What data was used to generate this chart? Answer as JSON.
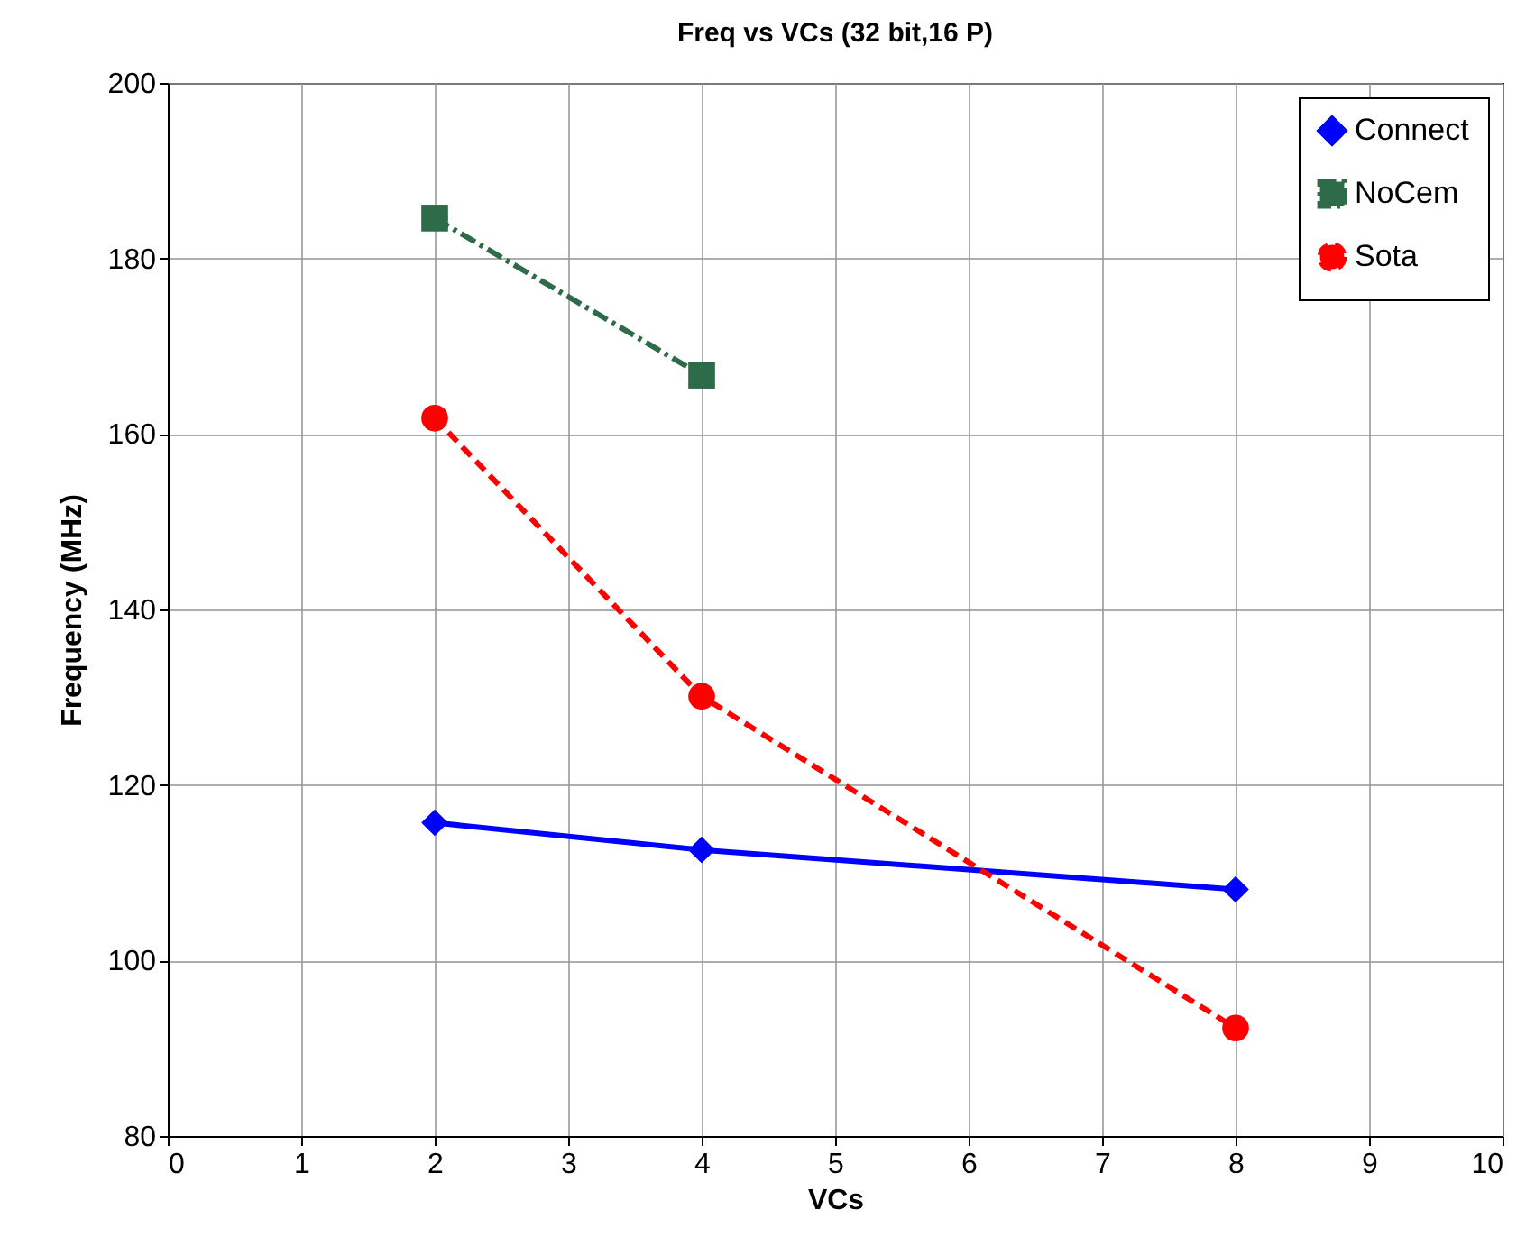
{
  "chart_data": {
    "type": "line",
    "title": "Freq vs VCs (32 bit,16 P)",
    "xlabel": "VCs",
    "ylabel": "Frequency (MHz)",
    "xlim": [
      0,
      10
    ],
    "xticks": [
      0,
      1,
      2,
      3,
      4,
      5,
      6,
      7,
      8,
      9,
      10
    ],
    "ylim": [
      80,
      200
    ],
    "yticks": [
      80,
      100,
      120,
      140,
      160,
      180,
      200
    ],
    "grid": true,
    "legend": "top right",
    "series": [
      {
        "name": "Connect",
        "color": "#0000ff",
        "x": [
          2,
          4,
          8
        ],
        "values": [
          115.7,
          112.6,
          108.1
        ],
        "marker": "diamond",
        "line_style": "solid"
      },
      {
        "name": "NoCem",
        "color": "#2e6b48",
        "x": [
          2,
          4
        ],
        "values": [
          184.6,
          166.7
        ],
        "marker": "square",
        "line_style": "dashdot"
      },
      {
        "name": "Sota",
        "color": "#ff0000",
        "x": [
          2,
          4,
          8
        ],
        "values": [
          161.8,
          130.1,
          92.3
        ],
        "marker": "circle",
        "line_style": "dashed"
      }
    ]
  }
}
